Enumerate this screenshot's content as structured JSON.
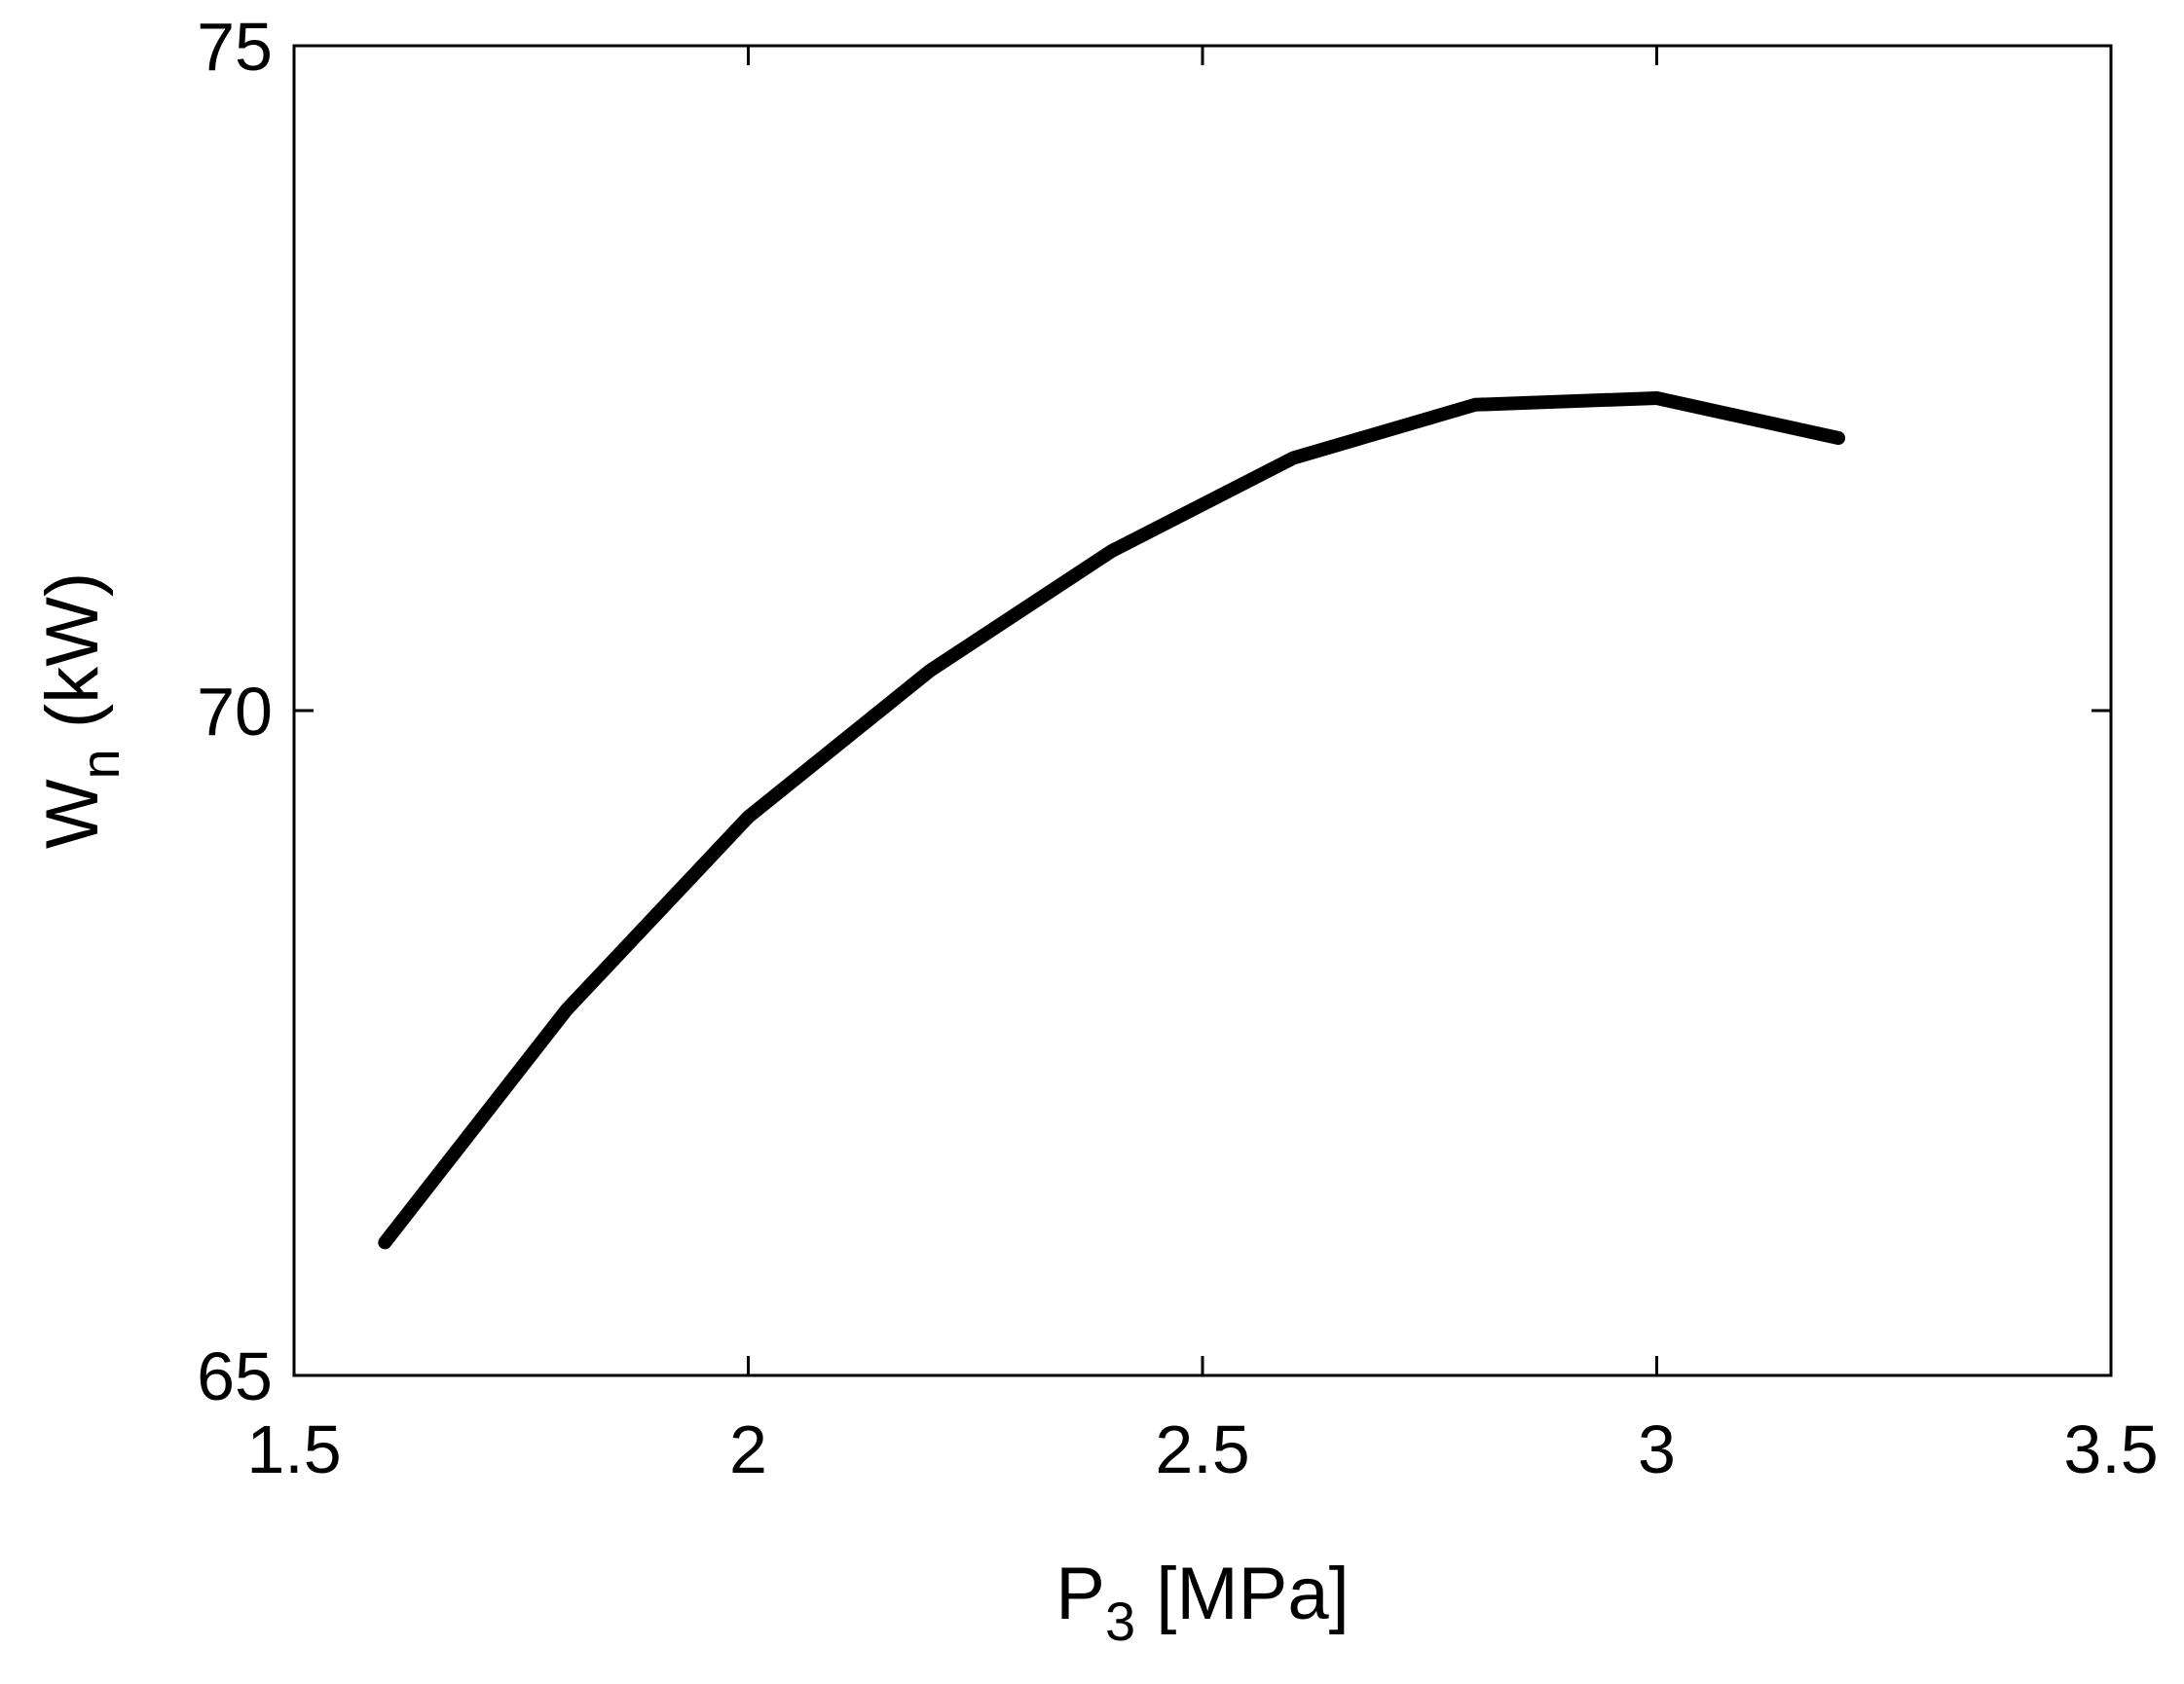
{
  "chart_data": {
    "type": "line",
    "title": "",
    "xlabel": {
      "main": "P",
      "sub": "3",
      "rest": " [MPa]"
    },
    "ylabel": {
      "main": "W",
      "sub": "n",
      "rest": " (kW)"
    },
    "xlim": [
      1.5,
      3.5
    ],
    "ylim": [
      65,
      75
    ],
    "xticks": [
      1.5,
      2,
      2.5,
      3,
      3.5
    ],
    "xtick_labels": [
      "1.5",
      "2",
      "2.5",
      "3",
      "3.5"
    ],
    "yticks": [
      65,
      70,
      75
    ],
    "ytick_labels": [
      "65",
      "70",
      "75"
    ],
    "grid": false,
    "series": [
      {
        "x": [
          1.6,
          1.8,
          2.0,
          2.2,
          2.4,
          2.6,
          2.8,
          3.0,
          3.2
        ],
        "y": [
          66.0,
          67.75,
          69.2,
          70.3,
          71.2,
          71.9,
          72.3,
          72.35,
          72.05
        ],
        "color": "#000000"
      }
    ]
  }
}
